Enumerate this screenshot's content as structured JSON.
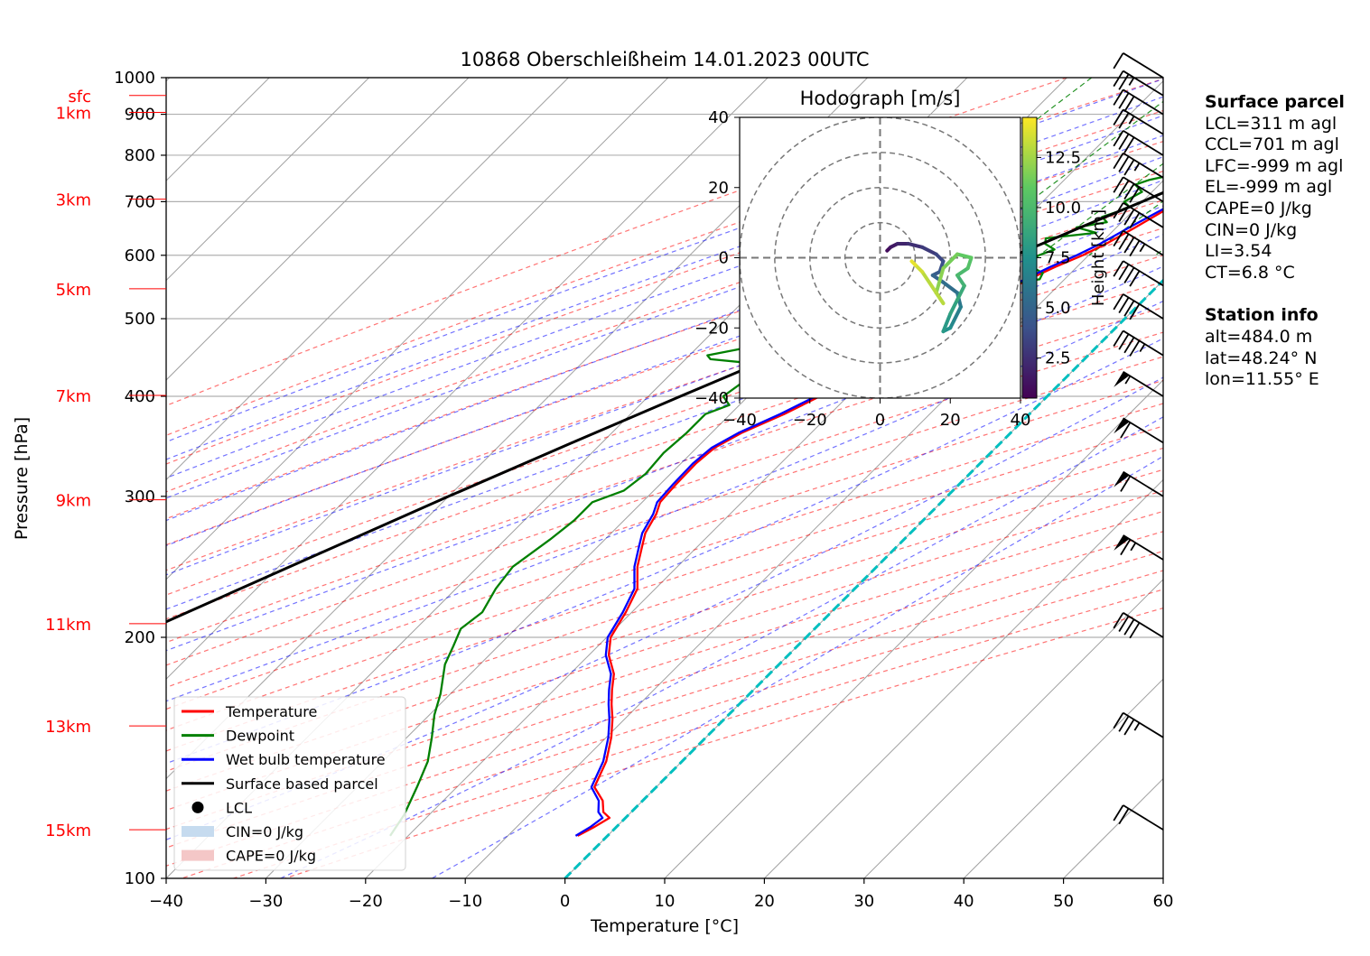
{
  "chart_data": {
    "type": "line",
    "title": "10868 Oberschleißheim 14.01.2023 00UTC",
    "xlabel": "Temperature [°C]",
    "ylabel": "Pressure [hPa]",
    "xlim": [
      -40,
      60
    ],
    "ylim": [
      1000,
      100
    ],
    "y_scale": "log",
    "x_ticks": [
      "−40",
      "−30",
      "−20",
      "−10",
      "0",
      "10",
      "20",
      "30",
      "40",
      "50",
      "60"
    ],
    "y_ticks": [
      {
        "p": 100,
        "label": "100"
      },
      {
        "p": 200,
        "label": "200"
      },
      {
        "p": 300,
        "label": "300"
      },
      {
        "p": 400,
        "label": "400"
      },
      {
        "p": 500,
        "label": "500"
      },
      {
        "p": 600,
        "label": "600"
      },
      {
        "p": 700,
        "label": "700"
      },
      {
        "p": 800,
        "label": "800"
      },
      {
        "p": 900,
        "label": "900"
      },
      {
        "p": 1000,
        "label": "1000"
      }
    ],
    "height_labels": [
      {
        "p": 950,
        "label": "sfc"
      },
      {
        "p": 905,
        "label": "1km"
      },
      {
        "p": 705,
        "label": "3km"
      },
      {
        "p": 545,
        "label": "5km"
      },
      {
        "p": 401,
        "label": "7km"
      },
      {
        "p": 297,
        "label": "9km"
      },
      {
        "p": 208,
        "label": "11km"
      },
      {
        "p": 155,
        "label": "13km"
      },
      {
        "p": 115,
        "label": "15km"
      }
    ],
    "series": [
      {
        "name": "Temperature",
        "color": "#ff0000",
        "points": [
          [
            950,
            4.2
          ],
          [
            940,
            4.6
          ],
          [
            930,
            4.7
          ],
          [
            920,
            4.0
          ],
          [
            900,
            2.8
          ],
          [
            880,
            1.2
          ],
          [
            860,
            -0.6
          ],
          [
            840,
            -1.8
          ],
          [
            820,
            -2.3
          ],
          [
            800,
            -3.0
          ],
          [
            780,
            -3.9
          ],
          [
            750,
            -4.3
          ],
          [
            720,
            -5.0
          ],
          [
            700,
            -5.8
          ],
          [
            680,
            -7.0
          ],
          [
            650,
            -8.1
          ],
          [
            620,
            -9.4
          ],
          [
            600,
            -10.6
          ],
          [
            580,
            -12.2
          ],
          [
            560,
            -13.6
          ],
          [
            540,
            -14.8
          ],
          [
            520,
            -16.0
          ],
          [
            500,
            -17.0
          ],
          [
            480,
            -17.8
          ],
          [
            460,
            -18.4
          ],
          [
            440,
            -19.6
          ],
          [
            420,
            -21.4
          ],
          [
            400,
            -22.8
          ],
          [
            380,
            -24.6
          ],
          [
            360,
            -27.0
          ],
          [
            345,
            -28.2
          ],
          [
            330,
            -28.5
          ],
          [
            310,
            -28.4
          ],
          [
            295,
            -28.2
          ],
          [
            285,
            -27.4
          ],
          [
            270,
            -26.6
          ],
          [
            260,
            -25.6
          ],
          [
            245,
            -24.0
          ],
          [
            230,
            -21.8
          ],
          [
            215,
            -20.6
          ],
          [
            200,
            -19.6
          ],
          [
            190,
            -18.0
          ],
          [
            180,
            -15.6
          ],
          [
            172,
            -14.2
          ],
          [
            165,
            -12.8
          ],
          [
            158,
            -11.2
          ],
          [
            150,
            -9.5
          ],
          [
            140,
            -7.6
          ],
          [
            130,
            -6.2
          ],
          [
            125,
            -4.0
          ],
          [
            121,
            -2.8
          ],
          [
            119,
            -1.6
          ],
          [
            116,
            -2.2
          ],
          [
            113,
            -3.0
          ]
        ]
      },
      {
        "name": "Dewpoint",
        "color": "#008000",
        "points": [
          [
            950,
            2.3
          ],
          [
            940,
            2.1
          ],
          [
            930,
            1.3
          ],
          [
            920,
            1.2
          ],
          [
            900,
            1.0
          ],
          [
            880,
            0.3
          ],
          [
            860,
            -0.6
          ],
          [
            840,
            -1.8
          ],
          [
            820,
            -3.2
          ],
          [
            810,
            -2.8
          ],
          [
            800,
            -4.0
          ],
          [
            790,
            -5.3
          ],
          [
            780,
            -4.2
          ],
          [
            770,
            -6.5
          ],
          [
            760,
            -9.0
          ],
          [
            745,
            -11.5
          ],
          [
            735,
            -12.4
          ],
          [
            720,
            -11.0
          ],
          [
            700,
            -11.8
          ],
          [
            690,
            -10.8
          ],
          [
            680,
            -11.5
          ],
          [
            670,
            -12.5
          ],
          [
            660,
            -11.5
          ],
          [
            650,
            -14.0
          ],
          [
            640,
            -11.5
          ],
          [
            630,
            -16.0
          ],
          [
            620,
            -15.5
          ],
          [
            610,
            -14.0
          ],
          [
            600,
            -15.0
          ],
          [
            590,
            -15.2
          ],
          [
            580,
            -14.5
          ],
          [
            570,
            -12.8
          ],
          [
            560,
            -12.5
          ],
          [
            550,
            -16.0
          ],
          [
            540,
            -17.5
          ],
          [
            530,
            -19.0
          ],
          [
            520,
            -24.0
          ],
          [
            505,
            -26.0
          ],
          [
            490,
            -28.0
          ],
          [
            475,
            -31.0
          ],
          [
            460,
            -35.0
          ],
          [
            450,
            -38.2
          ],
          [
            445,
            -37.5
          ],
          [
            440,
            -33.0
          ],
          [
            430,
            -32.0
          ],
          [
            415,
            -32.0
          ],
          [
            400,
            -32.5
          ],
          [
            390,
            -31.0
          ],
          [
            380,
            -32.5
          ],
          [
            360,
            -32.5
          ],
          [
            340,
            -32.8
          ],
          [
            320,
            -32.5
          ],
          [
            305,
            -33.0
          ],
          [
            295,
            -35.0
          ],
          [
            280,
            -35.0
          ],
          [
            265,
            -35.5
          ],
          [
            255,
            -36.0
          ],
          [
            245,
            -36.5
          ],
          [
            230,
            -36.0
          ],
          [
            215,
            -35.0
          ],
          [
            205,
            -35.5
          ],
          [
            195,
            -34.5
          ],
          [
            185,
            -33.5
          ],
          [
            170,
            -31.0
          ],
          [
            160,
            -29.5
          ],
          [
            150,
            -27.5
          ],
          [
            140,
            -25.5
          ],
          [
            130,
            -24.0
          ],
          [
            120,
            -22.5
          ],
          [
            113,
            -21.8
          ]
        ]
      },
      {
        "name": "Wet bulb temperature",
        "color": "#0000ff",
        "points": [
          [
            960,
            3.6
          ],
          [
            950,
            3.5
          ],
          [
            940,
            3.3
          ],
          [
            930,
            3.0
          ],
          [
            920,
            2.6
          ],
          [
            900,
            1.9
          ],
          [
            880,
            0.8
          ],
          [
            860,
            -0.6
          ],
          [
            840,
            -1.8
          ],
          [
            820,
            -2.8
          ],
          [
            800,
            -3.4
          ],
          [
            780,
            -4.1
          ],
          [
            750,
            -4.8
          ],
          [
            720,
            -5.6
          ],
          [
            700,
            -6.5
          ],
          [
            680,
            -7.4
          ],
          [
            650,
            -8.7
          ],
          [
            620,
            -10.0
          ],
          [
            600,
            -11.2
          ],
          [
            580,
            -12.7
          ],
          [
            560,
            -14.0
          ],
          [
            540,
            -15.2
          ],
          [
            520,
            -16.3
          ],
          [
            500,
            -17.3
          ],
          [
            480,
            -18.0
          ],
          [
            460,
            -18.7
          ],
          [
            440,
            -20.0
          ],
          [
            420,
            -21.8
          ],
          [
            400,
            -23.2
          ],
          [
            380,
            -25.0
          ],
          [
            360,
            -27.3
          ],
          [
            345,
            -28.5
          ],
          [
            330,
            -28.8
          ],
          [
            310,
            -28.7
          ],
          [
            295,
            -28.5
          ],
          [
            285,
            -27.7
          ],
          [
            270,
            -26.9
          ],
          [
            260,
            -25.9
          ],
          [
            245,
            -24.3
          ],
          [
            230,
            -22.1
          ],
          [
            215,
            -20.9
          ],
          [
            200,
            -19.9
          ],
          [
            190,
            -18.3
          ],
          [
            180,
            -15.9
          ],
          [
            172,
            -14.5
          ],
          [
            165,
            -13.1
          ],
          [
            158,
            -11.5
          ],
          [
            150,
            -9.8
          ],
          [
            140,
            -7.9
          ],
          [
            130,
            -6.5
          ],
          [
            125,
            -4.4
          ],
          [
            121,
            -3.3
          ],
          [
            119,
            -2.3
          ],
          [
            116,
            -2.6
          ],
          [
            113,
            -3.2
          ]
        ]
      },
      {
        "name": "Surface based parcel",
        "color": "#000000",
        "points": [
          [
            955,
            4.8
          ],
          [
            920,
            2.6
          ],
          [
            900,
            1.3
          ],
          [
            850,
            -1.2
          ],
          [
            800,
            -3.8
          ],
          [
            750,
            -6.8
          ],
          [
            700,
            -10.0
          ],
          [
            650,
            -13.6
          ],
          [
            600,
            -17.4
          ],
          [
            550,
            -21.6
          ],
          [
            500,
            -26.2
          ],
          [
            450,
            -31.2
          ],
          [
            400,
            -36.8
          ],
          [
            350,
            -43.0
          ],
          [
            300,
            -50.0
          ],
          [
            250,
            -58.0
          ],
          [
            208,
            -66.0
          ]
        ]
      }
    ],
    "lcl": {
      "name": "LCL",
      "p": 922,
      "t": 2.9
    },
    "legend": {
      "placement": "lower-left",
      "entries": [
        {
          "label": "Temperature",
          "kind": "line",
          "color": "#ff0000"
        },
        {
          "label": "Dewpoint",
          "kind": "line",
          "color": "#008000"
        },
        {
          "label": "Wet bulb temperature",
          "kind": "line",
          "color": "#0000ff"
        },
        {
          "label": "Surface based parcel",
          "kind": "line",
          "color": "#000000"
        },
        {
          "label": "LCL",
          "kind": "dot",
          "color": "#000000"
        },
        {
          "label": "CIN=0 J/kg",
          "kind": "patch",
          "color": "#c6dbef"
        },
        {
          "label": "CAPE=0 J/kg",
          "kind": "patch",
          "color": "#f4c7c7"
        }
      ]
    },
    "hodograph": {
      "title": "Hodograph [m/s]",
      "xlim": [
        -40,
        40
      ],
      "ylim": [
        -40,
        40
      ],
      "ticks": [
        "−40",
        "−20",
        "0",
        "20",
        "40"
      ],
      "ring_radii": [
        10,
        20,
        30,
        40
      ],
      "colorbar": {
        "label": "Height [km]",
        "ticks": [
          "2.5",
          "5.0",
          "7.5",
          "10.0",
          "12.5"
        ],
        "range": [
          0.5,
          14.5
        ]
      },
      "points": [
        [
          2,
          2,
          0.5
        ],
        [
          3,
          3,
          1.0
        ],
        [
          5,
          4,
          1.5
        ],
        [
          8,
          4,
          2.0
        ],
        [
          12,
          3,
          2.5
        ],
        [
          16,
          1,
          3.0
        ],
        [
          18,
          -1,
          3.5
        ],
        [
          17,
          -4,
          4.0
        ],
        [
          15,
          -5,
          4.5
        ],
        [
          18,
          -7,
          5.0
        ],
        [
          22,
          -10,
          5.5
        ],
        [
          23,
          -14,
          6.0
        ],
        [
          21,
          -18,
          6.5
        ],
        [
          20,
          -20,
          7.0
        ],
        [
          18,
          -21,
          7.5
        ],
        [
          20,
          -16,
          8.0
        ],
        [
          22,
          -12,
          8.5
        ],
        [
          24,
          -8,
          9.0
        ],
        [
          22,
          -5,
          9.5
        ],
        [
          25,
          -3,
          10.0
        ],
        [
          26,
          0,
          10.5
        ],
        [
          22,
          1,
          11.0
        ],
        [
          18,
          -3,
          11.5
        ],
        [
          16,
          -10,
          12.0
        ],
        [
          18,
          -13,
          12.5
        ],
        [
          12,
          -4,
          13.0
        ],
        [
          10,
          -2,
          13.5
        ],
        [
          9,
          -1,
          14.0
        ]
      ]
    },
    "wind_barbs": [
      {
        "p": 1000,
        "speed": 10
      },
      {
        "p": 950,
        "speed": 25
      },
      {
        "p": 900,
        "speed": 30
      },
      {
        "p": 850,
        "speed": 25
      },
      {
        "p": 800,
        "speed": 30
      },
      {
        "p": 750,
        "speed": 35
      },
      {
        "p": 700,
        "speed": 40
      },
      {
        "p": 650,
        "speed": 40
      },
      {
        "p": 600,
        "speed": 45
      },
      {
        "p": 550,
        "speed": 40
      },
      {
        "p": 500,
        "speed": 40
      },
      {
        "p": 450,
        "speed": 45
      },
      {
        "p": 400,
        "speed": 55
      },
      {
        "p": 350,
        "speed": 60
      },
      {
        "p": 300,
        "speed": 60
      },
      {
        "p": 250,
        "speed": 65
      },
      {
        "p": 200,
        "speed": 40
      },
      {
        "p": 150,
        "speed": 35
      },
      {
        "p": 115,
        "speed": 20
      }
    ],
    "colors": {
      "isotherm_zero": "#00bfbf",
      "dry_adiabat": "#ff0000",
      "moist_adiabat": "#0000ff",
      "mixing_ratio": "#008000",
      "isotherm": "#a0a0a0",
      "height_label": "#ff0000"
    }
  },
  "side_panel": {
    "parcel_title": "Surface parcel",
    "parcel_lines": [
      "LCL=311 m agl",
      "CCL=701 m agl",
      "LFC=-999 m agl",
      "EL=-999 m agl",
      "CAPE=0 J/kg",
      "CIN=0 J/kg",
      "LI=3.54",
      "CT=6.8 °C"
    ],
    "station_title": "Station info",
    "station_lines": [
      "alt=484.0 m",
      "lat=48.24° N",
      "lon=11.55° E"
    ]
  }
}
